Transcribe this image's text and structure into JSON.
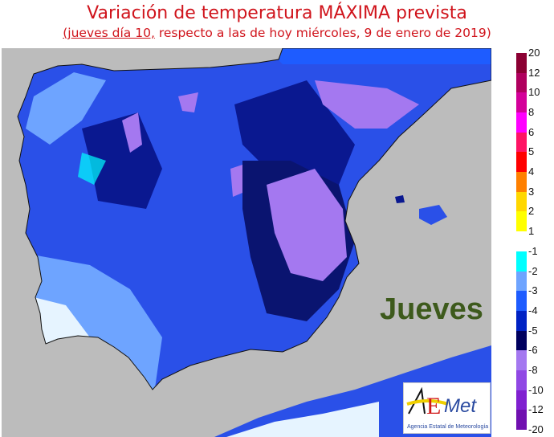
{
  "header": {
    "title": "Variación de temperatura MÁXIMA prevista",
    "subtitle_underlined": "(jueves día 10,",
    "subtitle_rest": " respecto a las de hoy miércoles, 9 de enero de 2019)"
  },
  "map": {
    "day_label": "Jueves",
    "sea_color": "#bcbcbc"
  },
  "logo": {
    "brand": "AEMet",
    "name": "Agencia Estatal de Meteorología"
  },
  "legend": {
    "positive": {
      "labels": [
        "20",
        "12",
        "10",
        "8",
        "6",
        "5",
        "4",
        "3",
        "2",
        "1"
      ],
      "colors": [
        "#8b0033",
        "#b0005e",
        "#d4009a",
        "#ff00ff",
        "#ff1464",
        "#ff0000",
        "#ff8000",
        "#ffd700",
        "#ffff00"
      ]
    },
    "negative": {
      "labels": [
        "-1",
        "-2",
        "-3",
        "-4",
        "-5",
        "-6",
        "-8",
        "-10",
        "-12",
        "-20"
      ],
      "colors": [
        "#00ffff",
        "#6ea4ff",
        "#1e5cff",
        "#0022c4",
        "#00005e",
        "#a478f0",
        "#9048e4",
        "#8020d0",
        "#7010b0"
      ]
    }
  }
}
